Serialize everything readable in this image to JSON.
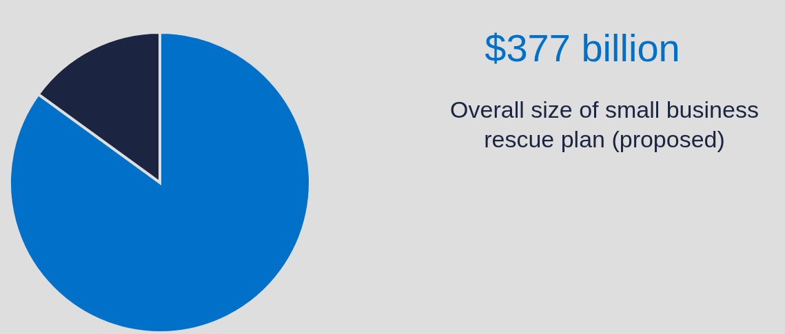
{
  "chart_data": {
    "type": "pie",
    "categories": [
      null,
      null
    ],
    "values": [
      85,
      15
    ],
    "colors": [
      "#0070c8",
      "#1b2541"
    ],
    "annotations": [
      "$377 billion",
      "Overall size of small business rescue plan (proposed)"
    ]
  }
}
